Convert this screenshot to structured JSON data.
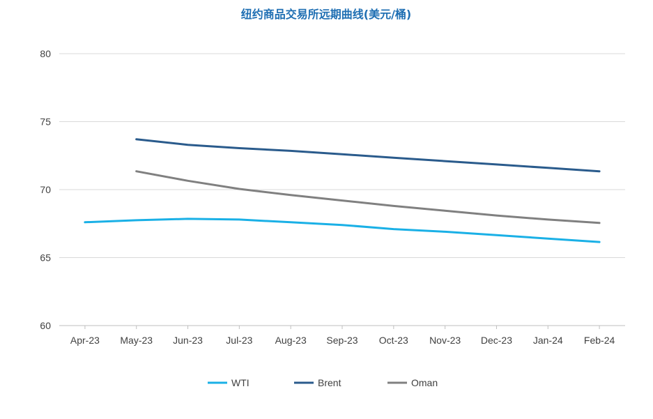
{
  "chart_data": {
    "type": "line",
    "title": "纽约商品交易所远期曲线(美元/桶)",
    "xlabel": "",
    "ylabel": "",
    "categories": [
      "Apr-23",
      "May-23",
      "Jun-23",
      "Jul-23",
      "Aug-23",
      "Sep-23",
      "Oct-23",
      "Nov-23",
      "Dec-23",
      "Jan-24",
      "Feb-24"
    ],
    "ylim": [
      60,
      80
    ],
    "yticks": [
      "60",
      "65",
      "70",
      "75",
      "80"
    ],
    "grid": true,
    "legend": "bottom",
    "series": [
      {
        "name": "WTI",
        "color": "#1ab0e6",
        "values": [
          67.6,
          67.75,
          67.85,
          67.8,
          67.6,
          67.4,
          67.1,
          66.9,
          66.65,
          66.4,
          66.15
        ]
      },
      {
        "name": "Brent",
        "color": "#2a5b8c",
        "values": [
          null,
          73.7,
          73.3,
          73.05,
          72.85,
          72.6,
          72.35,
          72.1,
          71.85,
          71.6,
          71.35
        ]
      },
      {
        "name": "Oman",
        "color": "#808080",
        "values": [
          null,
          71.35,
          70.65,
          70.05,
          69.6,
          69.2,
          68.8,
          68.45,
          68.1,
          67.8,
          67.55
        ]
      }
    ]
  }
}
